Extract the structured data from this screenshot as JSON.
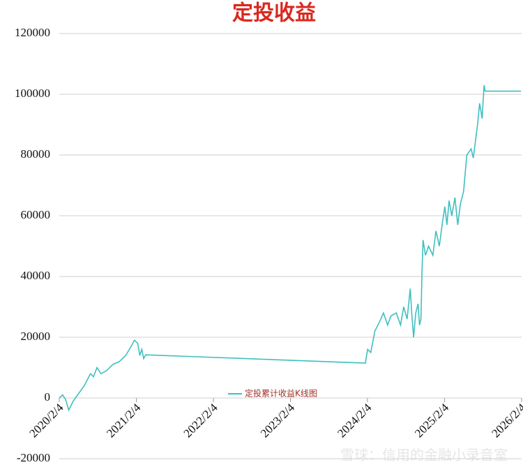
{
  "chart_data": {
    "type": "line",
    "title": "定投收益",
    "watermark": "雪球：信用的金融小录音室",
    "legend": "bottom-center",
    "grid": true,
    "series": [
      {
        "name": "定投累计收益K线图",
        "color": "#3fbfbf",
        "x": [
          "2020/2/4",
          "2020/2/20",
          "2020/3/5",
          "2020/3/20",
          "2020/4/10",
          "2020/5/1",
          "2020/6/1",
          "2020/7/1",
          "2020/7/15",
          "2020/8/1",
          "2020/8/20",
          "2020/9/15",
          "2020/10/15",
          "2020/11/15",
          "2020/12/15",
          "2021/1/10",
          "2021/1/25",
          "2021/2/10",
          "2021/2/20",
          "2021/3/1",
          "2021/3/10",
          "2021/3/20",
          "2024/1/25",
          "2024/2/5",
          "2024/2/20",
          "2024/3/10",
          "2024/4/1",
          "2024/4/20",
          "2024/5/10",
          "2024/5/25",
          "2024/6/20",
          "2024/7/10",
          "2024/7/25",
          "2024/8/10",
          "2024/8/25",
          "2024/9/1",
          "2024/9/10",
          "2024/9/20",
          "2024/10/1",
          "2024/10/8",
          "2024/10/15",
          "2024/10/20",
          "2024/10/25",
          "2024/11/5",
          "2024/11/20",
          "2024/12/10",
          "2024/12/25",
          "2025/1/10",
          "2025/1/25",
          "2025/2/5",
          "2025/2/15",
          "2025/2/25",
          "2025/3/10",
          "2025/3/25",
          "2025/4/7",
          "2025/4/20",
          "2025/5/5",
          "2025/5/20",
          "2025/6/10",
          "2025/6/20",
          "2025/7/10",
          "2025/7/20",
          "2025/8/1",
          "2025/8/10",
          "2025/8/15",
          "2026/2/1"
        ],
        "values": [
          0,
          1000,
          -500,
          -4000,
          -1000,
          1000,
          4000,
          8000,
          7000,
          10000,
          8000,
          9000,
          11000,
          12000,
          14000,
          17000,
          19000,
          18000,
          14000,
          16000,
          13000,
          14200,
          11500,
          16000,
          15000,
          22000,
          25000,
          28000,
          24000,
          27000,
          28000,
          24000,
          30000,
          26000,
          36000,
          28000,
          20000,
          28000,
          31000,
          24000,
          26000,
          42000,
          52000,
          47000,
          50000,
          47000,
          55000,
          50000,
          58000,
          63000,
          57000,
          65000,
          60000,
          66000,
          57000,
          64000,
          68000,
          80000,
          82000,
          79000,
          90000,
          97000,
          92000,
          103000,
          101000,
          101000
        ]
      }
    ],
    "xlim": [
      "2020/2/4",
      "2026/2/4"
    ],
    "xticks": [
      "2020/2/4",
      "2021/2/4",
      "2022/2/4",
      "2023/2/4",
      "2024/2/4",
      "2025/2/4",
      "2026/2/4"
    ],
    "ylim": [
      -20000,
      120000
    ],
    "yticks": [
      -20000,
      0,
      20000,
      40000,
      60000,
      80000,
      100000,
      120000
    ]
  }
}
